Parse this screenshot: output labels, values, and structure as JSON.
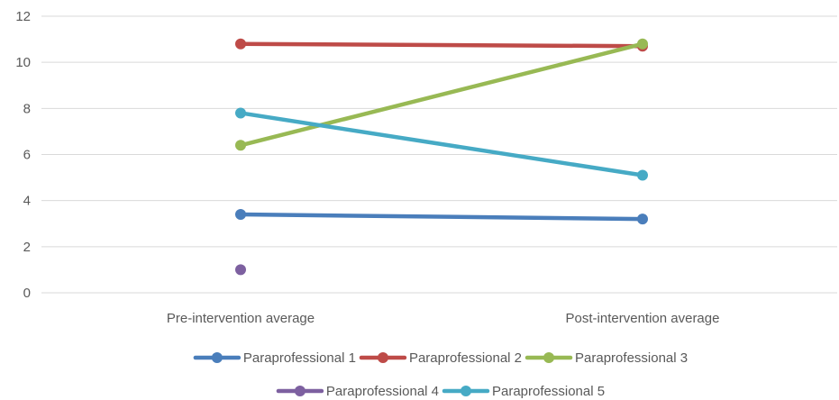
{
  "chart_data": {
    "type": "line",
    "categories": [
      "Pre-intervention average",
      "Post-intervention average"
    ],
    "ylim": [
      0,
      12
    ],
    "yticks": [
      0,
      2,
      4,
      6,
      8,
      10,
      12
    ],
    "grid": true,
    "legend_position": "bottom",
    "series": [
      {
        "name": "Paraprofessional 1",
        "color": "#4a7ebb",
        "values": [
          3.4,
          3.2
        ]
      },
      {
        "name": "Paraprofessional 2",
        "color": "#be4b48",
        "values": [
          10.8,
          10.7
        ]
      },
      {
        "name": "Paraprofessional 3",
        "color": "#98b954",
        "values": [
          6.4,
          10.8
        ]
      },
      {
        "name": "Paraprofessional 4",
        "color": "#7d60a0",
        "values": [
          1.0,
          null
        ]
      },
      {
        "name": "Paraprofessional 5",
        "color": "#46aac5",
        "values": [
          7.8,
          5.1
        ]
      }
    ]
  }
}
